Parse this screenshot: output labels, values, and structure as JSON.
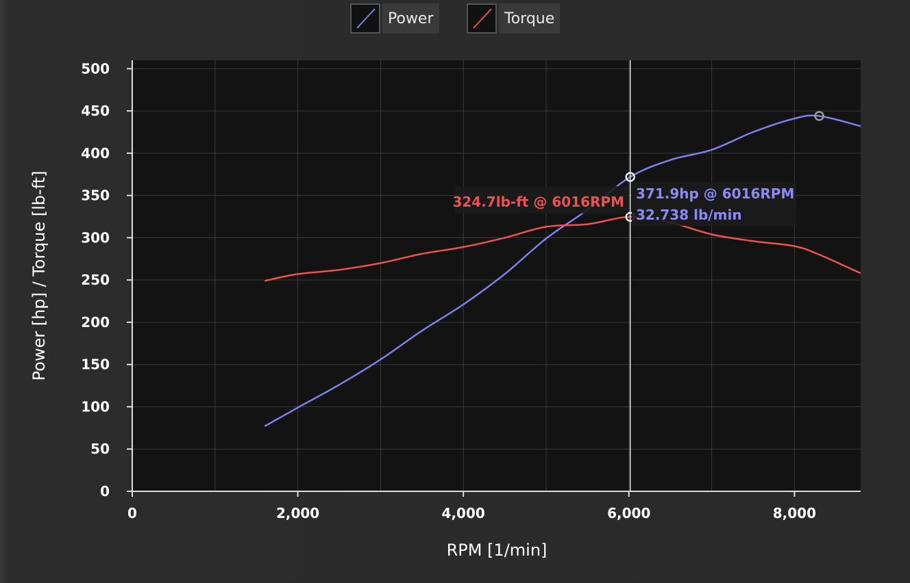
{
  "chart_data": {
    "type": "line",
    "xlabel": "RPM [1/min]",
    "ylabel": "Power [hp] / Torque [lb-ft]",
    "xlim": [
      0,
      8800
    ],
    "ylim": [
      0,
      510
    ],
    "x_ticks": [
      0,
      2000,
      4000,
      6000,
      8000
    ],
    "x_tick_labels": [
      "0",
      "2,000",
      "4,000",
      "6,000",
      "8,000"
    ],
    "y_ticks": [
      0,
      50,
      100,
      150,
      200,
      250,
      300,
      350,
      400,
      450,
      500
    ],
    "y_tick_labels": [
      "0",
      "50",
      "100",
      "150",
      "200",
      "250",
      "300",
      "350",
      "400",
      "450",
      "500"
    ],
    "grid": true,
    "legend_position": "top-center",
    "series": [
      {
        "name": "Power",
        "color": "#7f7fef",
        "points": [
          [
            1600,
            77
          ],
          [
            2000,
            99
          ],
          [
            2500,
            126
          ],
          [
            3000,
            156
          ],
          [
            3500,
            190
          ],
          [
            4000,
            221
          ],
          [
            4500,
            257
          ],
          [
            5000,
            299
          ],
          [
            5500,
            333
          ],
          [
            6016,
            371.9
          ],
          [
            6500,
            392
          ],
          [
            7000,
            404
          ],
          [
            7500,
            425
          ],
          [
            8000,
            441
          ],
          [
            8300,
            444
          ],
          [
            8800,
            432
          ]
        ]
      },
      {
        "name": "Torque",
        "color": "#ef5050",
        "points": [
          [
            1600,
            249
          ],
          [
            2000,
            257
          ],
          [
            2500,
            262
          ],
          [
            3000,
            270
          ],
          [
            3500,
            281
          ],
          [
            4000,
            289
          ],
          [
            4500,
            300
          ],
          [
            5000,
            313
          ],
          [
            5500,
            316
          ],
          [
            6016,
            324.7
          ],
          [
            6500,
            318
          ],
          [
            7000,
            304
          ],
          [
            7500,
            296
          ],
          [
            8000,
            290
          ],
          [
            8300,
            280
          ],
          [
            8800,
            258
          ]
        ]
      }
    ],
    "cursor": {
      "x": 6016,
      "power_label": "371.9hp @ 6016RPM",
      "flow_label": "32.738 lb/min",
      "torque_label": "324.7lb-ft @ 6016RPM"
    },
    "peak_marker": {
      "x": 8300,
      "y": 444
    }
  }
}
